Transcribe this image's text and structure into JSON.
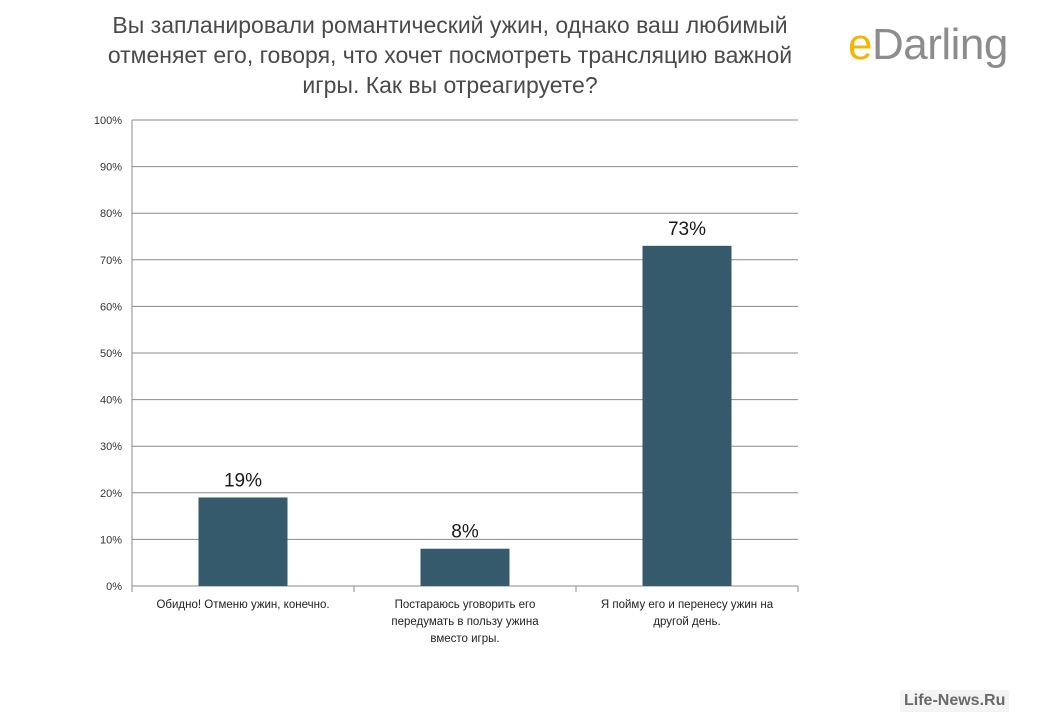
{
  "page": {
    "logo_prefix": "e",
    "logo_rest": "Darling",
    "watermark": "Life-News.Ru"
  },
  "chart_data": {
    "type": "bar",
    "title": "Вы запланировали романтический ужин, однако ваш любимый отменяет его, говоря, что хочет посмотреть трансляцию важной игры. Как вы отреагируете?",
    "categories": [
      "Обидно! Отменю ужин, конечно.",
      "Постараюсь уговорить его передумать в пользу ужина вместо игры.",
      "Я пойму его и перенесу ужин на другой день."
    ],
    "category_lines": [
      [
        "Обидно! Отменю ужин, конечно."
      ],
      [
        "Постараюсь уговорить его",
        "передумать в пользу ужина",
        "вместо игры."
      ],
      [
        "Я пойму его и перенесу ужин на",
        "другой день."
      ]
    ],
    "values": [
      19,
      8,
      73
    ],
    "value_labels": [
      "19%",
      "8%",
      "73%"
    ],
    "ylim": [
      0,
      100
    ],
    "yticks": [
      0,
      10,
      20,
      30,
      40,
      50,
      60,
      70,
      80,
      90,
      100
    ],
    "ytick_labels": [
      "0%",
      "10%",
      "20%",
      "30%",
      "40%",
      "50%",
      "60%",
      "70%",
      "80%",
      "90%",
      "100%"
    ],
    "grid": true,
    "bar_color": "#345a6b",
    "xlabel": "",
    "ylabel": ""
  }
}
